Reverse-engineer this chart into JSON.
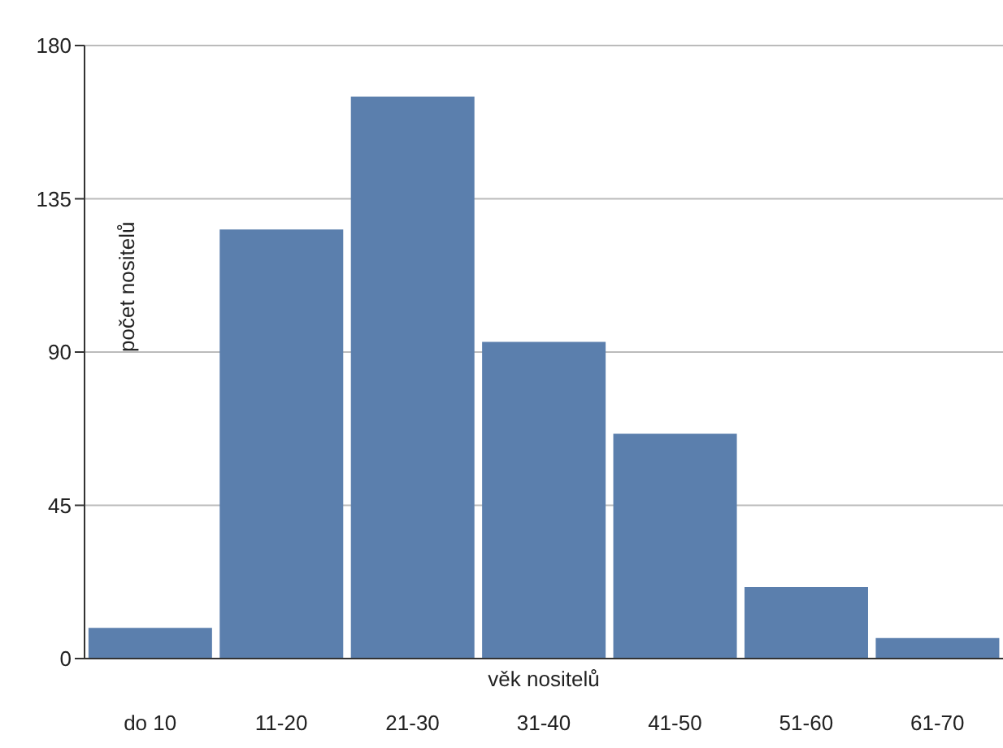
{
  "chart_data": {
    "type": "bar",
    "xlabel": "věk nositelů",
    "ylabel": "počet nositelů",
    "categories": [
      "do 10",
      "11-20",
      "21-30",
      "31-40",
      "41-50",
      "51-60",
      "61-70"
    ],
    "values": [
      9,
      126,
      165,
      93,
      66,
      21,
      6
    ],
    "color": "#5b7fad",
    "ylim": [
      0,
      180
    ],
    "yticks": [
      0,
      45,
      90,
      135,
      180
    ],
    "grid": "y"
  }
}
